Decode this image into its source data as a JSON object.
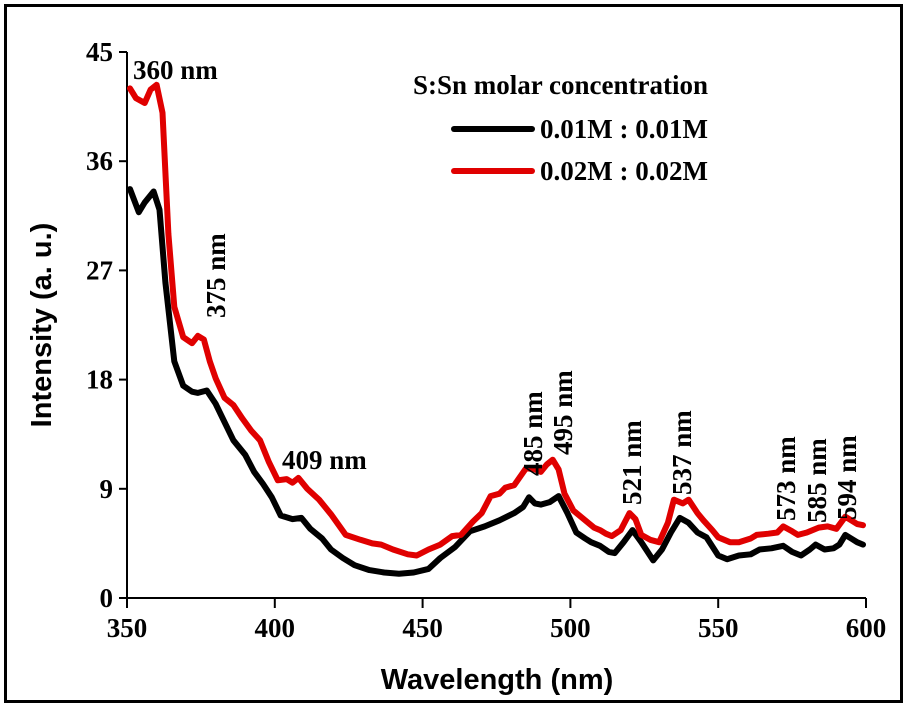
{
  "chart_data": {
    "type": "line",
    "title": "",
    "xlabel": "Wavelength (nm)",
    "ylabel": "Intensity (a. u.)",
    "xlim": [
      350,
      600
    ],
    "ylim": [
      0,
      45
    ],
    "xticks": [
      350,
      400,
      450,
      500,
      550,
      600
    ],
    "yticks": [
      0,
      9,
      18,
      27,
      36,
      45
    ],
    "grid": false,
    "legend": {
      "title": "S:Sn molar concentration",
      "placement": "top-right",
      "entries": [
        {
          "label": "0.01M : 0.01M",
          "color": "#000000"
        },
        {
          "label": "0.02M : 0.02M",
          "color": "#e00000"
        }
      ]
    },
    "series": [
      {
        "name": "0.01M : 0.01M",
        "color": "#000000",
        "x": [
          351,
          354,
          356,
          359,
          361,
          363,
          366,
          369,
          372,
          374,
          377,
          380,
          383,
          386,
          390,
          393,
          396,
          399,
          402,
          406,
          409,
          412,
          416,
          419,
          423,
          427,
          432,
          437,
          442,
          447,
          452,
          456,
          461,
          466,
          471,
          476,
          481,
          484,
          486,
          488,
          490,
          493,
          496,
          499,
          502,
          505,
          507,
          510,
          513,
          515,
          518,
          521,
          524,
          528,
          531,
          534,
          537,
          540,
          543,
          546,
          550,
          553,
          557,
          561,
          564,
          568,
          572,
          575,
          578,
          581,
          583,
          586,
          589,
          591,
          593,
          595,
          597,
          599
        ],
        "y": [
          33.7,
          31.8,
          32.6,
          33.5,
          32.0,
          26.0,
          19.5,
          17.5,
          17.0,
          16.9,
          17.1,
          16.0,
          14.5,
          13.0,
          11.8,
          10.4,
          9.4,
          8.3,
          6.8,
          6.5,
          6.6,
          5.7,
          4.9,
          4.0,
          3.3,
          2.7,
          2.3,
          2.1,
          2.0,
          2.1,
          2.4,
          3.3,
          4.2,
          5.5,
          5.9,
          6.4,
          7.0,
          7.5,
          8.3,
          7.8,
          7.7,
          7.9,
          8.4,
          7.0,
          5.4,
          4.9,
          4.6,
          4.3,
          3.8,
          3.7,
          4.6,
          5.6,
          4.6,
          3.1,
          4.0,
          5.4,
          6.6,
          6.2,
          5.4,
          5.0,
          3.5,
          3.2,
          3.5,
          3.6,
          4.0,
          4.1,
          4.3,
          3.8,
          3.5,
          4.0,
          4.4,
          4.0,
          4.1,
          4.4,
          5.2,
          4.9,
          4.6,
          4.4
        ]
      },
      {
        "name": "0.02M : 0.02M",
        "color": "#e00000",
        "x": [
          351,
          353,
          356,
          358,
          360,
          362,
          364,
          366,
          369,
          372,
          374,
          376,
          378,
          380,
          383,
          386,
          389,
          392,
          395,
          398,
          401,
          404,
          406,
          408,
          411,
          415,
          419,
          424,
          429,
          433,
          436,
          440,
          445,
          448,
          452,
          456,
          460,
          463,
          467,
          470,
          473,
          476,
          478,
          481,
          485,
          488,
          490,
          492,
          494,
          496,
          498,
          501,
          505,
          508,
          510,
          512,
          514,
          517,
          520,
          522,
          524,
          527,
          530,
          533,
          535,
          538,
          540,
          543,
          545,
          548,
          550,
          554,
          557,
          561,
          563,
          567,
          570,
          572,
          575,
          577,
          580,
          584,
          587,
          590,
          593,
          595,
          597,
          599
        ],
        "y": [
          42.0,
          41.2,
          40.8,
          41.9,
          42.3,
          40.0,
          30.0,
          24.0,
          21.5,
          21.0,
          21.6,
          21.3,
          19.5,
          18.1,
          16.5,
          15.9,
          14.8,
          13.8,
          13.0,
          11.2,
          9.7,
          9.8,
          9.5,
          9.9,
          9.0,
          8.1,
          6.9,
          5.2,
          4.8,
          4.5,
          4.4,
          4.0,
          3.6,
          3.5,
          4.0,
          4.4,
          5.1,
          5.2,
          6.3,
          7.0,
          8.4,
          8.6,
          9.1,
          9.3,
          10.7,
          10.6,
          10.4,
          11.0,
          11.4,
          10.6,
          8.6,
          7.2,
          6.4,
          5.8,
          5.6,
          5.3,
          5.1,
          5.6,
          7.0,
          6.5,
          5.2,
          4.8,
          4.6,
          6.2,
          8.1,
          7.8,
          8.1,
          7.0,
          6.4,
          5.6,
          5.0,
          4.6,
          4.6,
          4.9,
          5.2,
          5.3,
          5.4,
          5.9,
          5.5,
          5.2,
          5.4,
          5.8,
          5.9,
          5.7,
          6.7,
          6.4,
          6.1,
          6.0
        ]
      }
    ],
    "annotations": [
      {
        "text": "360 nm",
        "x": 360,
        "orientation": "horizontal"
      },
      {
        "text": "375 nm",
        "x": 375,
        "orientation": "vertical"
      },
      {
        "text": "409 nm",
        "x": 409,
        "orientation": "horizontal"
      },
      {
        "text": "485 nm",
        "x": 485,
        "orientation": "vertical"
      },
      {
        "text": "495 nm",
        "x": 495,
        "orientation": "vertical"
      },
      {
        "text": "521 nm",
        "x": 521,
        "orientation": "vertical"
      },
      {
        "text": "537 nm",
        "x": 537,
        "orientation": "vertical"
      },
      {
        "text": "573 nm",
        "x": 573,
        "orientation": "vertical"
      },
      {
        "text": "585 nm",
        "x": 585,
        "orientation": "vertical"
      },
      {
        "text": "594 nm",
        "x": 594,
        "orientation": "vertical"
      }
    ]
  }
}
